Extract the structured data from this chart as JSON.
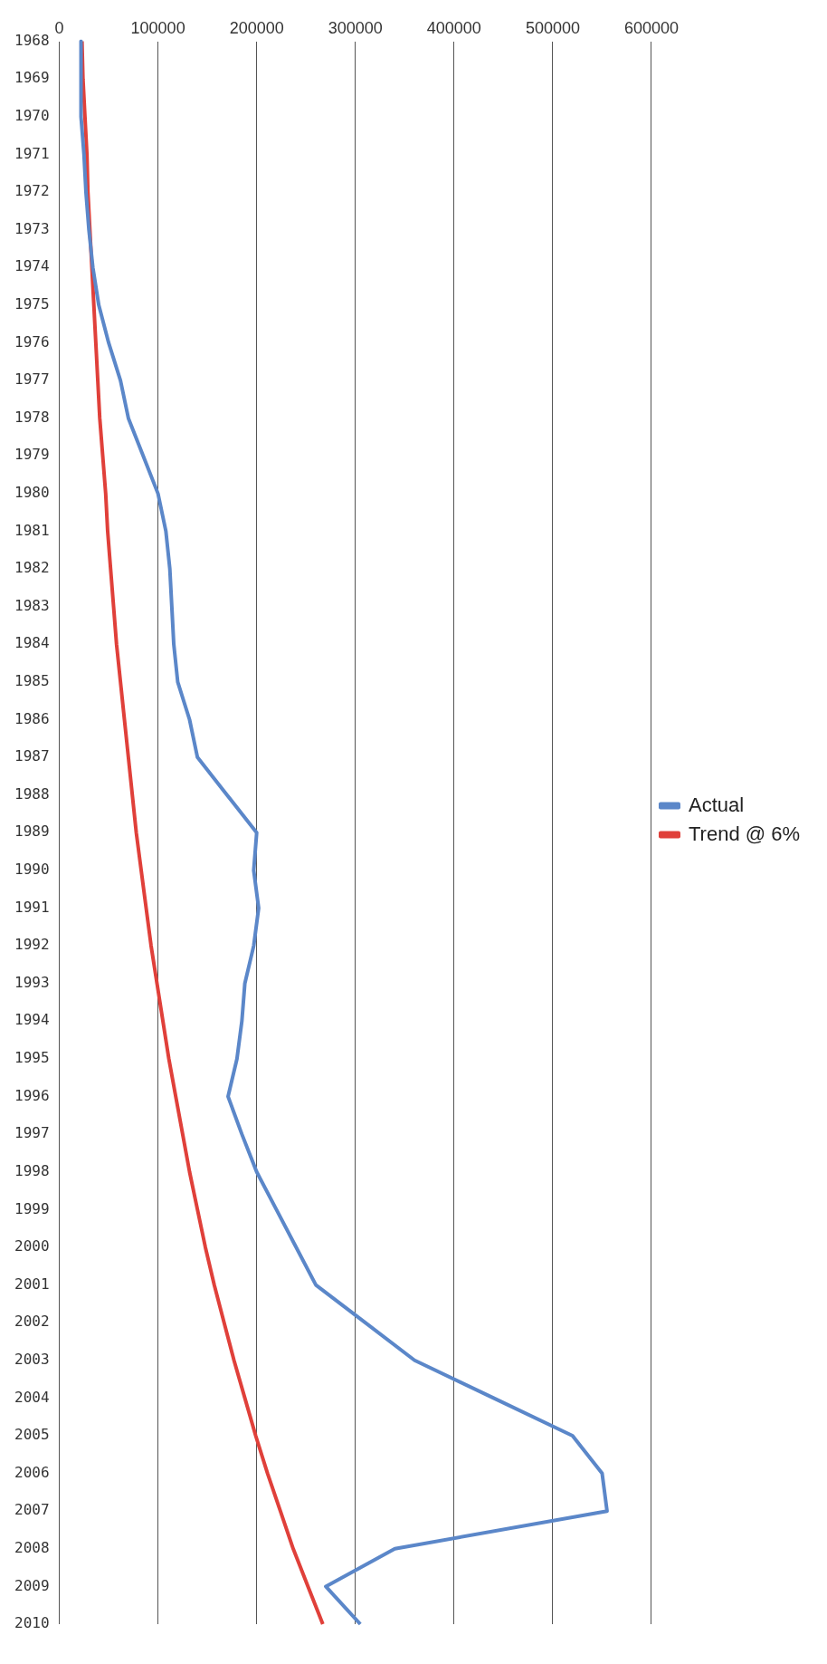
{
  "chart_data": {
    "type": "line",
    "orientation": "horizontal",
    "categories": [
      "1968",
      "1969",
      "1970",
      "1971",
      "1972",
      "1973",
      "1974",
      "1975",
      "1976",
      "1977",
      "1978",
      "1979",
      "1980",
      "1981",
      "1982",
      "1983",
      "1984",
      "1985",
      "1986",
      "1987",
      "1988",
      "1989",
      "1990",
      "1991",
      "1992",
      "1993",
      "1994",
      "1995",
      "1996",
      "1997",
      "1998",
      "1999",
      "2000",
      "2001",
      "2002",
      "2003",
      "2004",
      "2005",
      "2006",
      "2007",
      "2008",
      "2009",
      "2010"
    ],
    "series": [
      {
        "name": "Actual",
        "color": "#5b87c9",
        "values": [
          22000,
          22000,
          22000,
          25000,
          27000,
          30000,
          34000,
          40000,
          50000,
          62000,
          70000,
          85000,
          100000,
          108000,
          112000,
          114000,
          116000,
          120000,
          132000,
          140000,
          170000,
          200000,
          197000,
          202000,
          197000,
          188000,
          185000,
          180000,
          171000,
          185000,
          200000,
          220000,
          240000,
          260000,
          310000,
          360000,
          440000,
          520000,
          550000,
          555000,
          340000,
          270000,
          305000
        ]
      },
      {
        "name": "Trend @ 6%",
        "color": "#e0403a",
        "values": [
          23000,
          24000,
          26000,
          28000,
          29000,
          31000,
          33000,
          35000,
          37000,
          39000,
          41000,
          44000,
          47000,
          49000,
          52000,
          55000,
          58000,
          62000,
          66000,
          70000,
          74000,
          78000,
          83000,
          88000,
          93000,
          99000,
          105000,
          111000,
          118000,
          125000,
          132000,
          140000,
          148000,
          157000,
          167000,
          177000,
          188000,
          199000,
          211000,
          224000,
          237000,
          252000,
          267000
        ]
      }
    ],
    "xlim": [
      0,
      600000
    ],
    "xticks": [
      0,
      100000,
      200000,
      300000,
      400000,
      500000,
      600000
    ],
    "grid": "x",
    "legend": "right",
    "marker": "none"
  }
}
